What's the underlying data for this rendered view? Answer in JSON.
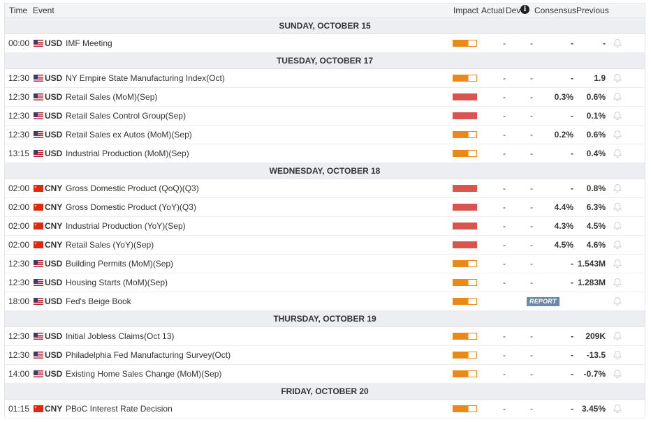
{
  "header": {
    "time": "Time",
    "event": "Event",
    "impact": "Impact",
    "actual": "Actual",
    "dev": "Dev",
    "consensus": "Consensus",
    "previous": "Previous",
    "info_icon_glyph": "i"
  },
  "colors": {
    "impact_medium": "#e8891a",
    "impact_high": "#d9534f",
    "report_badge": "#6b8aa6"
  },
  "days": [
    {
      "label": "SUNDAY, OCTOBER 15",
      "events": [
        {
          "time": "00:00",
          "flag": "us",
          "currency": "USD",
          "name": "IMF Meeting",
          "impact": "medium",
          "actual": "-",
          "dev": "-",
          "consensus": "-",
          "previous": "-"
        }
      ]
    },
    {
      "label": "TUESDAY, OCTOBER 17",
      "events": [
        {
          "time": "12:30",
          "flag": "us",
          "currency": "USD",
          "name": "NY Empire State Manufacturing Index(Oct)",
          "impact": "medium",
          "actual": "-",
          "dev": "-",
          "consensus": "-",
          "previous": "1.9"
        },
        {
          "time": "12:30",
          "flag": "us",
          "currency": "USD",
          "name": "Retail Sales (MoM)(Sep)",
          "impact": "high",
          "actual": "-",
          "dev": "-",
          "consensus": "0.3%",
          "previous": "0.6%"
        },
        {
          "time": "12:30",
          "flag": "us",
          "currency": "USD",
          "name": "Retail Sales Control Group(Sep)",
          "impact": "high",
          "actual": "-",
          "dev": "-",
          "consensus": "-",
          "previous": "0.1%"
        },
        {
          "time": "12:30",
          "flag": "us",
          "currency": "USD",
          "name": "Retail Sales ex Autos (MoM)(Sep)",
          "impact": "medium",
          "actual": "-",
          "dev": "-",
          "consensus": "0.2%",
          "previous": "0.6%"
        },
        {
          "time": "13:15",
          "flag": "us",
          "currency": "USD",
          "name": "Industrial Production (MoM)(Sep)",
          "impact": "medium",
          "actual": "-",
          "dev": "-",
          "consensus": "-",
          "previous": "0.4%"
        }
      ]
    },
    {
      "label": "WEDNESDAY, OCTOBER 18",
      "events": [
        {
          "time": "02:00",
          "flag": "cn",
          "currency": "CNY",
          "name": "Gross Domestic Product (QoQ)(Q3)",
          "impact": "high",
          "actual": "-",
          "dev": "-",
          "consensus": "-",
          "previous": "0.8%"
        },
        {
          "time": "02:00",
          "flag": "cn",
          "currency": "CNY",
          "name": "Gross Domestic Product (YoY)(Q3)",
          "impact": "high",
          "actual": "-",
          "dev": "-",
          "consensus": "4.4%",
          "previous": "6.3%"
        },
        {
          "time": "02:00",
          "flag": "cn",
          "currency": "CNY",
          "name": "Industrial Production (YoY)(Sep)",
          "impact": "high",
          "actual": "-",
          "dev": "-",
          "consensus": "4.3%",
          "previous": "4.5%"
        },
        {
          "time": "02:00",
          "flag": "cn",
          "currency": "CNY",
          "name": "Retail Sales (YoY)(Sep)",
          "impact": "high",
          "actual": "-",
          "dev": "-",
          "consensus": "4.5%",
          "previous": "4.6%"
        },
        {
          "time": "12:30",
          "flag": "us",
          "currency": "USD",
          "name": "Building Permits (MoM)(Sep)",
          "impact": "medium",
          "actual": "-",
          "dev": "-",
          "consensus": "-",
          "previous": "1.543M"
        },
        {
          "time": "12:30",
          "flag": "us",
          "currency": "USD",
          "name": "Housing Starts (MoM)(Sep)",
          "impact": "medium",
          "actual": "-",
          "dev": "-",
          "consensus": "-",
          "previous": "1.283M"
        },
        {
          "time": "18:00",
          "flag": "us",
          "currency": "USD",
          "name": "Fed's Beige Book",
          "impact": "medium",
          "report": "REPORT"
        }
      ]
    },
    {
      "label": "THURSDAY, OCTOBER 19",
      "events": [
        {
          "time": "12:30",
          "flag": "us",
          "currency": "USD",
          "name": "Initial Jobless Claims(Oct 13)",
          "impact": "medium",
          "actual": "-",
          "dev": "-",
          "consensus": "-",
          "previous": "209K"
        },
        {
          "time": "12:30",
          "flag": "us",
          "currency": "USD",
          "name": "Philadelphia Fed Manufacturing Survey(Oct)",
          "impact": "medium",
          "actual": "-",
          "dev": "-",
          "consensus": "-",
          "previous": "-13.5"
        },
        {
          "time": "14:00",
          "flag": "us",
          "currency": "USD",
          "name": "Existing Home Sales Change (MoM)(Sep)",
          "impact": "medium",
          "actual": "-",
          "dev": "-",
          "consensus": "-",
          "previous": "-0.7%"
        }
      ]
    },
    {
      "label": "FRIDAY, OCTOBER 20",
      "events": [
        {
          "time": "01:15",
          "flag": "cn",
          "currency": "CNY",
          "name": "PBoC Interest Rate Decision",
          "impact": "medium",
          "actual": "-",
          "dev": "-",
          "consensus": "-",
          "previous": "3.45%"
        }
      ]
    }
  ]
}
